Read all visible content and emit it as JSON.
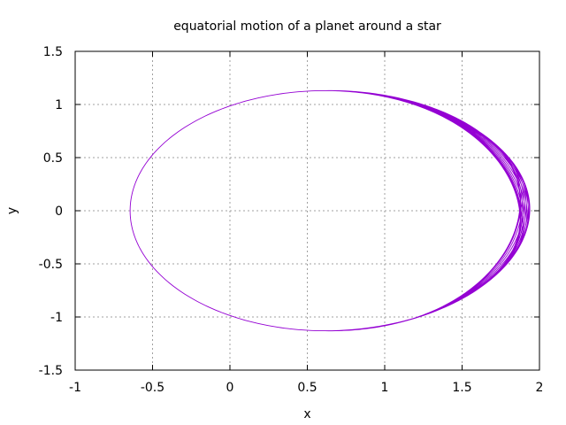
{
  "chart_data": {
    "type": "line",
    "title": "equatorial motion of a planet around a star",
    "xlabel": "x",
    "ylabel": "y",
    "xlim": [
      -1,
      2
    ],
    "ylim": [
      -1.5,
      1.5
    ],
    "x_ticks": [
      "-1",
      "-0.5",
      "0",
      "0.5",
      "1",
      "1.5",
      "2"
    ],
    "y_ticks": [
      "1.5",
      "1",
      "0.5",
      "0",
      "-0.5",
      "-1",
      "-1.5"
    ],
    "grid": true,
    "legend": "none",
    "series": [
      {
        "color": "#9400d3",
        "orbit": {
          "center_x": 0.615,
          "center_y": 0.0,
          "semi_major": 1.26,
          "semi_minor": 1.13,
          "periapsis_x": 1.875,
          "apoapsis_x": -0.645,
          "max_x_with_precession": 1.99,
          "max_abs_y_with_precession": 1.16,
          "orbits_drawn": 18
        }
      }
    ]
  }
}
